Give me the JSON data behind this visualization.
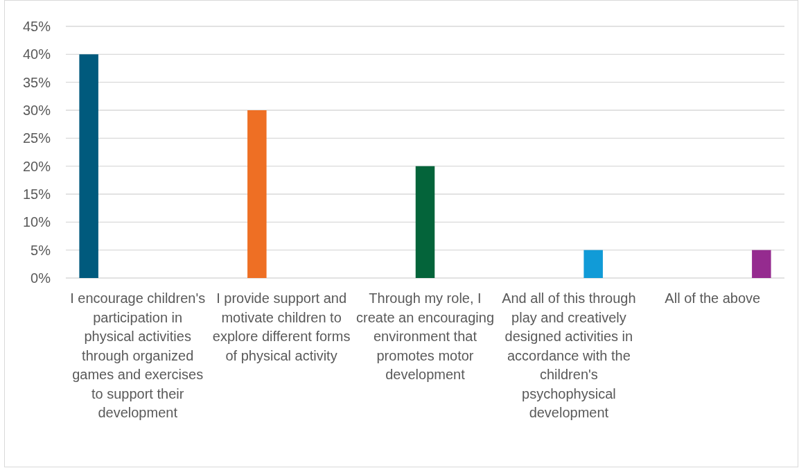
{
  "chart_data": {
    "type": "bar",
    "categories": [
      "I encourage children's participation in physical activities through organized games and exercises to support their development",
      "I provide support and motivate children to explore different forms of physical activity",
      "Through my role, I create an encouraging environment that promotes motor development",
      "And all of this through play and creatively designed activities in accordance with the children's psychophysical development",
      "All of the above"
    ],
    "series": [
      {
        "color": "#005a7d",
        "values": [
          40,
          null,
          null,
          null,
          null
        ]
      },
      {
        "color": "#ee6f24",
        "values": [
          null,
          30,
          null,
          null,
          null
        ]
      },
      {
        "color": "#04643a",
        "values": [
          null,
          null,
          20,
          null,
          null
        ]
      },
      {
        "color": "#119bd7",
        "values": [
          null,
          null,
          null,
          5,
          null
        ]
      },
      {
        "color": "#952b8f",
        "values": [
          null,
          null,
          null,
          null,
          5
        ]
      }
    ],
    "ylim": [
      0,
      45
    ],
    "yticks": [
      {
        "value": 0,
        "label": "0%"
      },
      {
        "value": 5,
        "label": "5%"
      },
      {
        "value": 10,
        "label": "10%"
      },
      {
        "value": 15,
        "label": "15%"
      },
      {
        "value": 20,
        "label": "20%"
      },
      {
        "value": 25,
        "label": "25%"
      },
      {
        "value": 30,
        "label": "30%"
      },
      {
        "value": 35,
        "label": "35%"
      },
      {
        "value": 40,
        "label": "40%"
      },
      {
        "value": 45,
        "label": "45%"
      }
    ],
    "grid": true
  }
}
